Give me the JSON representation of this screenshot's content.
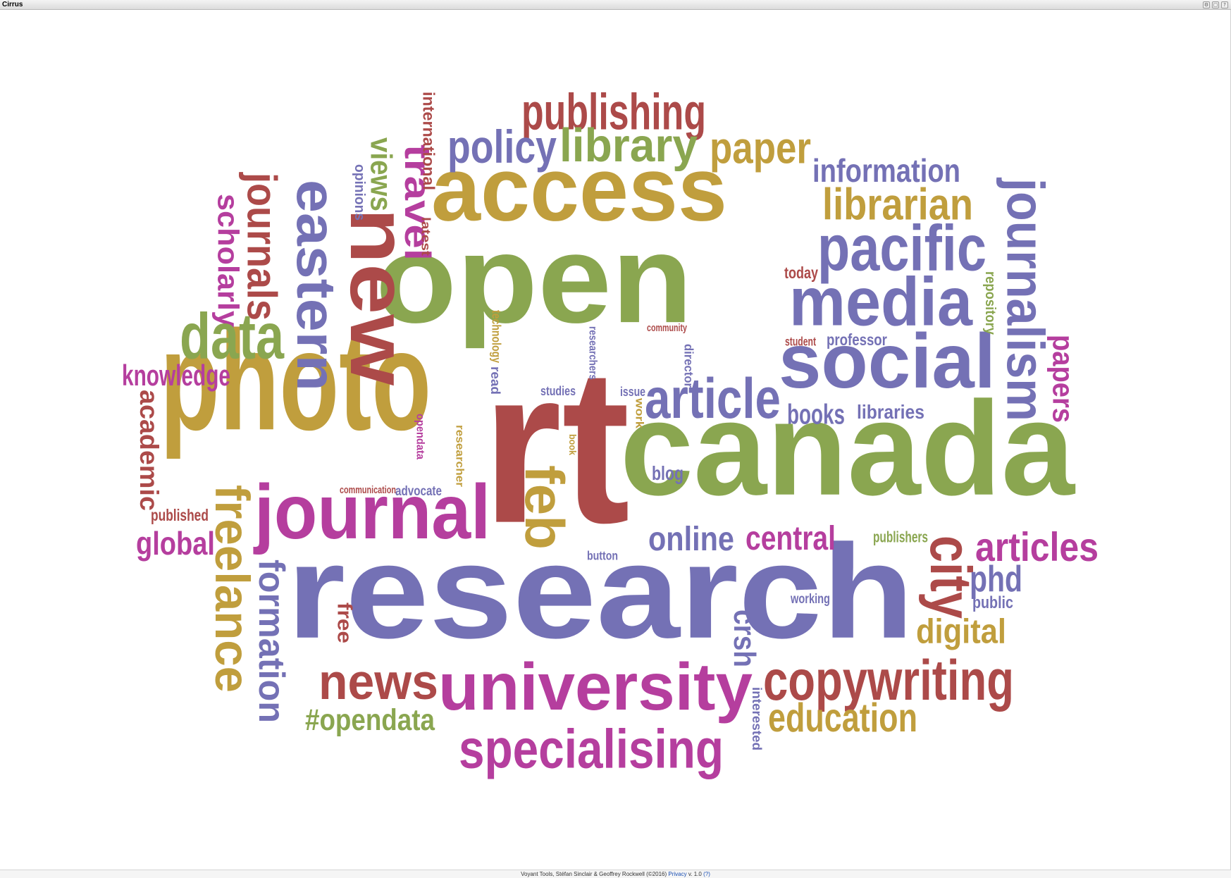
{
  "window": {
    "title": "Cirrus",
    "buttons": [
      "⚙",
      "▢",
      "?"
    ]
  },
  "footer": {
    "credit": "Voyant Tools, Stéfan Sinclair & Geoffrey Rockwell (©2016)",
    "privacy": "Privacy",
    "version": "v. 1.0",
    "help": "(?)"
  },
  "colors": {
    "purple": "#7471b5",
    "green": "#8aa650",
    "red": "#ac4a49",
    "gold": "#c09e3d",
    "magenta": "#b53e9e"
  },
  "words": [
    {
      "text": "access",
      "color": "gold"
    },
    {
      "text": "open",
      "color": "green"
    },
    {
      "text": "photo",
      "color": "gold"
    },
    {
      "text": "rt",
      "color": "red"
    },
    {
      "text": "canada",
      "color": "green"
    },
    {
      "text": "research",
      "color": "purple"
    },
    {
      "text": "new",
      "color": "red"
    },
    {
      "text": "media",
      "color": "purple"
    },
    {
      "text": "social",
      "color": "purple"
    },
    {
      "text": "journal",
      "color": "magenta"
    },
    {
      "text": "university",
      "color": "magenta"
    },
    {
      "text": "publishing",
      "color": "red"
    },
    {
      "text": "policy",
      "color": "purple"
    },
    {
      "text": "library",
      "color": "green"
    },
    {
      "text": "paper",
      "color": "gold"
    },
    {
      "text": "information",
      "color": "purple"
    },
    {
      "text": "librarian",
      "color": "gold"
    },
    {
      "text": "pacific",
      "color": "purple"
    },
    {
      "text": "eastern",
      "color": "purple"
    },
    {
      "text": "journalism",
      "color": "purple"
    },
    {
      "text": "article",
      "color": "purple"
    },
    {
      "text": "feb",
      "color": "gold"
    },
    {
      "text": "journals",
      "color": "red"
    },
    {
      "text": "scholarly",
      "color": "magenta"
    },
    {
      "text": "data",
      "color": "green"
    },
    {
      "text": "views",
      "color": "green"
    },
    {
      "text": "travel",
      "color": "magenta"
    },
    {
      "text": "knowledge",
      "color": "magenta"
    },
    {
      "text": "academic",
      "color": "red"
    },
    {
      "text": "freelance",
      "color": "gold"
    },
    {
      "text": "formation",
      "color": "purple"
    },
    {
      "text": "global",
      "color": "magenta"
    },
    {
      "text": "published",
      "color": "red"
    },
    {
      "text": "news",
      "color": "red"
    },
    {
      "text": "#opendata",
      "color": "green"
    },
    {
      "text": "specialising",
      "color": "magenta"
    },
    {
      "text": "copywriting",
      "color": "red"
    },
    {
      "text": "education",
      "color": "gold"
    },
    {
      "text": "online",
      "color": "purple"
    },
    {
      "text": "central",
      "color": "magenta"
    },
    {
      "text": "articles",
      "color": "magenta"
    },
    {
      "text": "city",
      "color": "red"
    },
    {
      "text": "phd",
      "color": "purple"
    },
    {
      "text": "digital",
      "color": "gold"
    },
    {
      "text": "papers",
      "color": "magenta"
    },
    {
      "text": "books",
      "color": "purple"
    },
    {
      "text": "libraries",
      "color": "purple"
    },
    {
      "text": "crsh",
      "color": "purple"
    },
    {
      "text": "free",
      "color": "red"
    },
    {
      "text": "today",
      "color": "red"
    },
    {
      "text": "professor",
      "color": "purple"
    },
    {
      "text": "student",
      "color": "red"
    },
    {
      "text": "repository",
      "color": "green"
    },
    {
      "text": "international",
      "color": "red"
    },
    {
      "text": "latest",
      "color": "red"
    },
    {
      "text": "opinions",
      "color": "purple"
    },
    {
      "text": "technology",
      "color": "gold"
    },
    {
      "text": "read",
      "color": "purple"
    },
    {
      "text": "researchers",
      "color": "purple"
    },
    {
      "text": "community",
      "color": "red"
    },
    {
      "text": "director",
      "color": "purple"
    },
    {
      "text": "studies",
      "color": "purple"
    },
    {
      "text": "issue",
      "color": "purple"
    },
    {
      "text": "work",
      "color": "gold"
    },
    {
      "text": "book",
      "color": "gold"
    },
    {
      "text": "blog",
      "color": "purple"
    },
    {
      "text": "opendata",
      "color": "magenta"
    },
    {
      "text": "researcher",
      "color": "gold"
    },
    {
      "text": "communication",
      "color": "red"
    },
    {
      "text": "advocate",
      "color": "purple"
    },
    {
      "text": "publishers",
      "color": "green"
    },
    {
      "text": "button",
      "color": "purple"
    },
    {
      "text": "working",
      "color": "purple"
    },
    {
      "text": "public",
      "color": "purple"
    },
    {
      "text": "interested",
      "color": "purple"
    }
  ]
}
